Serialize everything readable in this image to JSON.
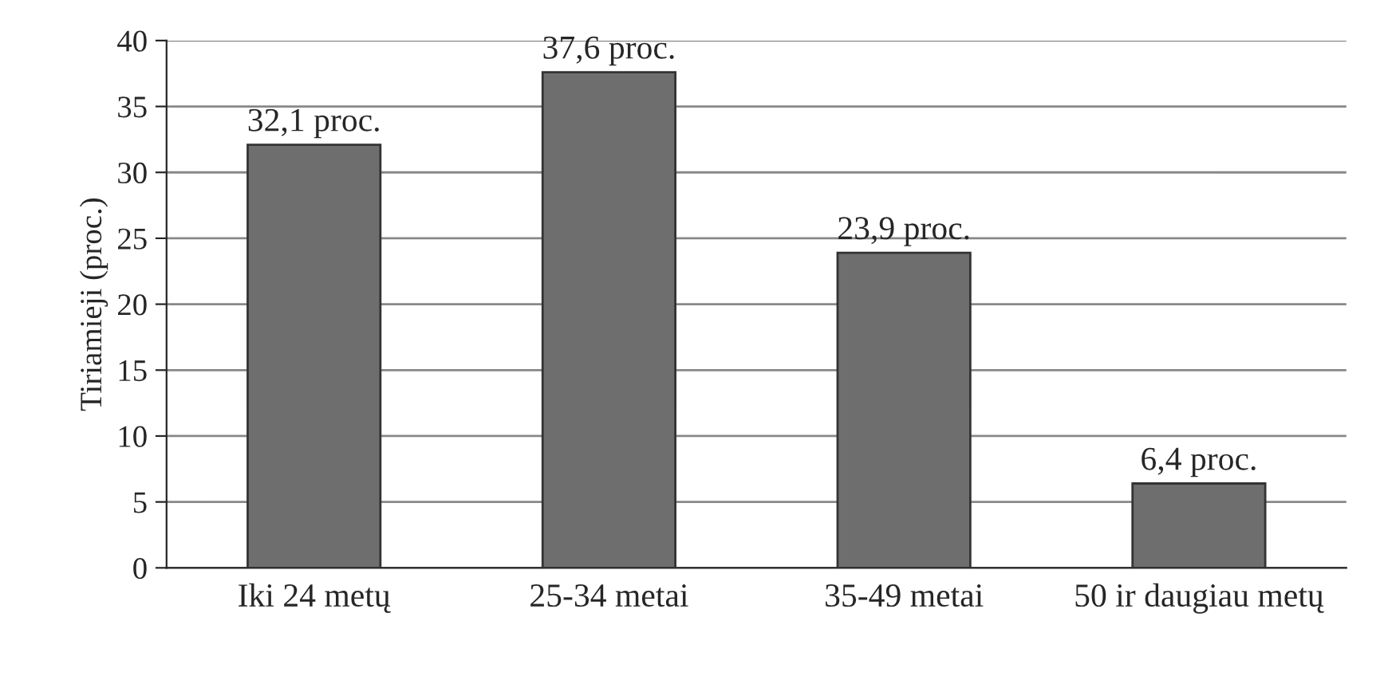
{
  "chart_data": {
    "type": "bar",
    "ylabel": "Tiriamieji (proc.)",
    "categories": [
      "Iki 24 metų",
      "25-34 metai",
      "35-49 metai",
      "50 ir daugiau metų"
    ],
    "values": [
      32.1,
      37.6,
      23.9,
      6.4
    ],
    "value_labels": [
      "32,1 proc.",
      "37,6 proc.",
      "23,9 proc.",
      "6,4 proc."
    ],
    "color": "#6e6e6e",
    "ylim": [
      0,
      40
    ],
    "yticks": [
      0,
      5,
      10,
      15,
      20,
      25,
      30,
      35,
      40
    ],
    "grid": "y"
  }
}
